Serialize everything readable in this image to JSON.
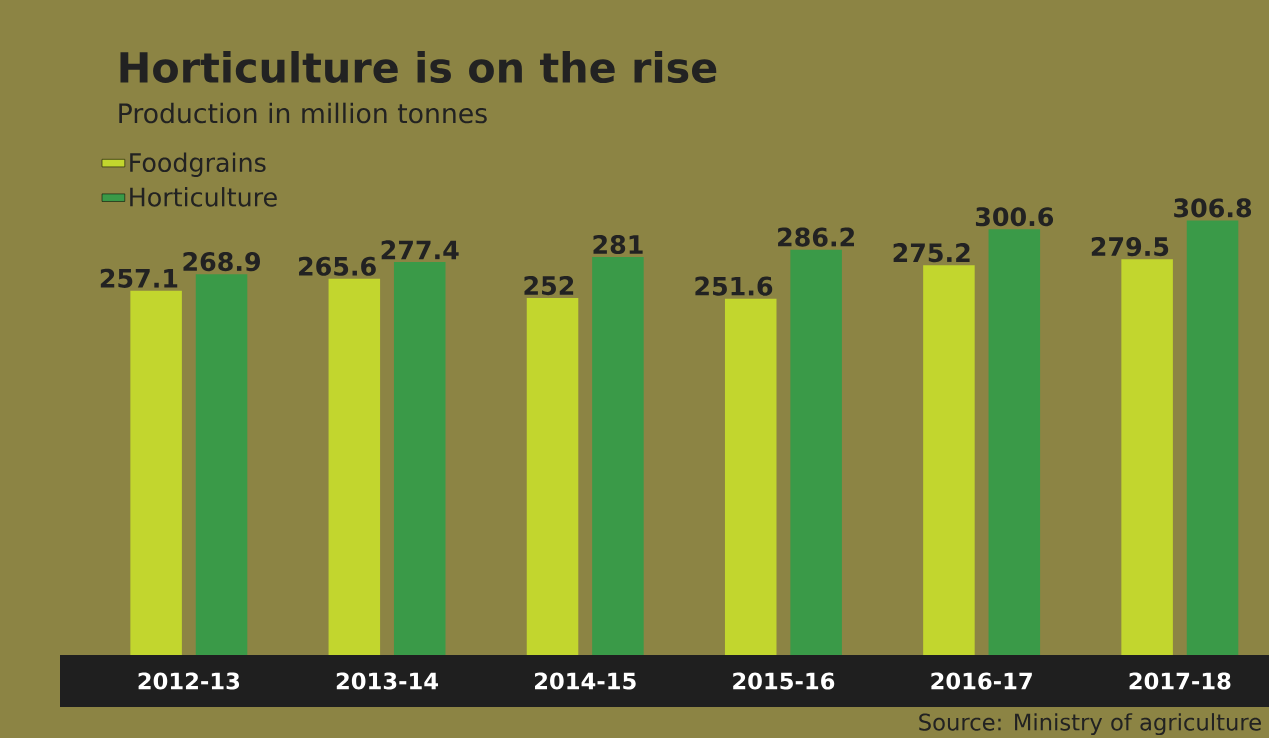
{
  "chart_data": {
    "type": "bar",
    "title": "Horticulture is on the rise",
    "subtitle": "Production in million tonnes",
    "categories": [
      "2012-13",
      "2013-14",
      "2014-15",
      "2015-16",
      "2016-17",
      "2017-18"
    ],
    "series": [
      {
        "name": "Foodgrains",
        "color": "#c2d62e",
        "values": [
          257.1,
          265.6,
          252,
          251.6,
          275.2,
          279.5
        ]
      },
      {
        "name": "Horticulture",
        "color": "#3a9a48",
        "values": [
          268.9,
          277.4,
          281,
          286.2,
          300.6,
          306.8
        ]
      }
    ],
    "tick_labels": "x",
    "legend": "top left",
    "data_labels": true,
    "annotations": [
      "Source: Ministry of agriculture"
    ]
  }
}
